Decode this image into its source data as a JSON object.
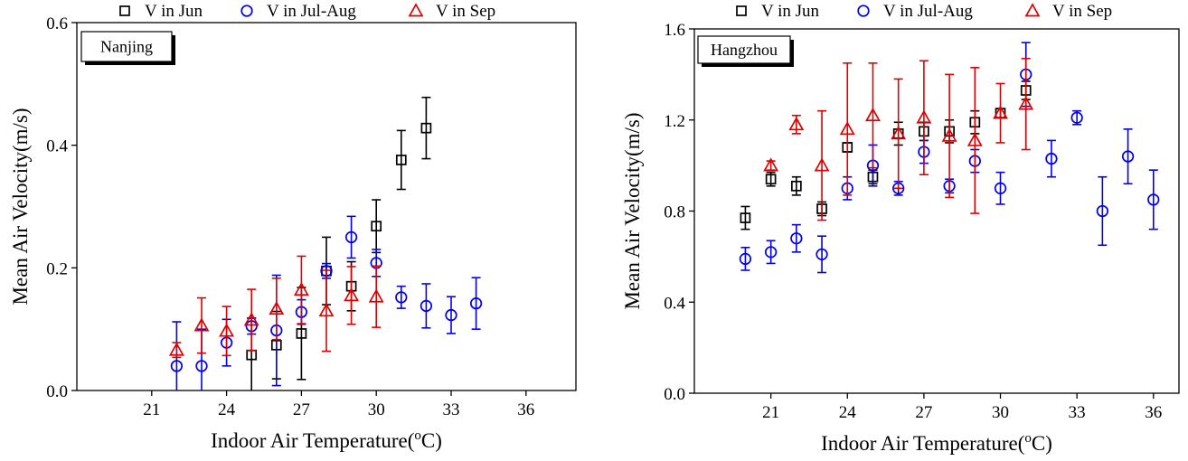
{
  "colors": {
    "jun": "#000000",
    "julaug": "#0000ee",
    "sep": "#dd0000"
  },
  "legend": [
    {
      "label": "V in Jun",
      "marker": "square",
      "color": "#000000"
    },
    {
      "label": "V in Jul-Aug",
      "marker": "circle",
      "color": "#0000ee"
    },
    {
      "label": "V in Sep",
      "marker": "triangle",
      "color": "#dd0000"
    }
  ],
  "chart_data": [
    {
      "type": "scatter",
      "panel_label": "Nanjing",
      "xlabel": "Indoor Air Temperature(",
      "xlabel_sup": "o",
      "xlabel_end": "C)",
      "ylabel": "Mean Air Velocity(m/s)",
      "xlim": [
        18,
        38
      ],
      "ylim": [
        0,
        0.6
      ],
      "xticks": [
        21,
        24,
        27,
        30,
        33,
        36
      ],
      "yticks": [
        0.0,
        0.2,
        0.4,
        0.6
      ],
      "ytick_labels": [
        "0.0",
        "0.2",
        "0.4",
        "0.6"
      ],
      "error_bars": true,
      "series": [
        {
          "name": "V in Jun",
          "marker": "square",
          "color": "#000000",
          "x": [
            25,
            26,
            27,
            28,
            29,
            30,
            31,
            32
          ],
          "y": [
            0.058,
            0.074,
            0.093,
            0.195,
            0.17,
            0.268,
            0.376,
            0.428
          ],
          "err": [
            0.06,
            0.055,
            0.075,
            0.055,
            0.04,
            0.043,
            0.048,
            0.05
          ]
        },
        {
          "name": "V in Jul-Aug",
          "marker": "circle",
          "color": "#0000ee",
          "x": [
            22,
            23,
            24,
            25,
            26,
            27,
            28,
            29,
            30,
            31,
            32,
            33,
            34
          ],
          "y": [
            0.04,
            0.04,
            0.078,
            0.105,
            0.098,
            0.128,
            0.195,
            0.25,
            0.208,
            0.152,
            0.138,
            0.123,
            0.142
          ],
          "err": [
            0.072,
            0.06,
            0.038,
            0.013,
            0.09,
            0.02,
            0.012,
            0.034,
            0.022,
            0.018,
            0.036,
            0.03,
            0.042
          ]
        },
        {
          "name": "V in Sep",
          "marker": "triangle",
          "color": "#dd0000",
          "x": [
            22,
            23,
            24,
            25,
            26,
            27,
            28,
            29,
            30
          ],
          "y": [
            0.066,
            0.106,
            0.097,
            0.115,
            0.133,
            0.164,
            0.13,
            0.155,
            0.153
          ],
          "err": [
            0.012,
            0.045,
            0.04,
            0.05,
            0.05,
            0.055,
            0.066,
            0.047,
            0.05
          ]
        }
      ]
    },
    {
      "type": "scatter",
      "panel_label": "Hangzhou",
      "xlabel": "Indoor Air Temperature(",
      "xlabel_sup": "o",
      "xlabel_end": "C)",
      "ylabel": "Mean Air Velocity(m/s)",
      "xlim": [
        18,
        37
      ],
      "ylim": [
        0,
        1.6
      ],
      "xticks": [
        21,
        24,
        27,
        30,
        33,
        36
      ],
      "yticks": [
        0.0,
        0.4,
        0.8,
        1.2,
        1.6
      ],
      "ytick_labels": [
        "0.0",
        "0.4",
        "0.8",
        "1.2",
        "1.6"
      ],
      "error_bars": true,
      "series": [
        {
          "name": "V in Jun",
          "marker": "square",
          "color": "#000000",
          "x": [
            20,
            21,
            22,
            23,
            24,
            25,
            26,
            27,
            28,
            29,
            30,
            31
          ],
          "y": [
            0.77,
            0.94,
            0.91,
            0.81,
            1.08,
            0.95,
            1.14,
            1.15,
            1.15,
            1.19,
            1.23,
            1.33
          ],
          "err": [
            0.05,
            0.03,
            0.04,
            0.03,
            0.02,
            0.03,
            0.05,
            0.04,
            0.05,
            0.05,
            0.02,
            0.04
          ]
        },
        {
          "name": "V in Jul-Aug",
          "marker": "circle",
          "color": "#0000ee",
          "x": [
            20,
            21,
            22,
            23,
            24,
            25,
            26,
            27,
            28,
            29,
            30,
            31,
            32,
            33,
            34,
            35,
            36
          ],
          "y": [
            0.59,
            0.62,
            0.68,
            0.61,
            0.9,
            1.0,
            0.9,
            1.06,
            0.91,
            1.02,
            0.9,
            1.4,
            1.03,
            1.21,
            0.8,
            1.04,
            0.85
          ],
          "err": [
            0.05,
            0.05,
            0.06,
            0.08,
            0.05,
            0.09,
            0.03,
            0.05,
            0.03,
            0.05,
            0.07,
            0.14,
            0.08,
            0.03,
            0.15,
            0.12,
            0.13
          ]
        },
        {
          "name": "V in Sep",
          "marker": "triangle",
          "color": "#dd0000",
          "x": [
            21,
            22,
            23,
            24,
            25,
            26,
            27,
            28,
            29,
            30,
            31
          ],
          "y": [
            1.0,
            1.18,
            1.0,
            1.16,
            1.22,
            1.14,
            1.21,
            1.13,
            1.11,
            1.23,
            1.27
          ],
          "err": [
            0.02,
            0.04,
            0.24,
            0.29,
            0.23,
            0.24,
            0.25,
            0.27,
            0.32,
            0.13,
            0.2
          ]
        }
      ]
    }
  ]
}
